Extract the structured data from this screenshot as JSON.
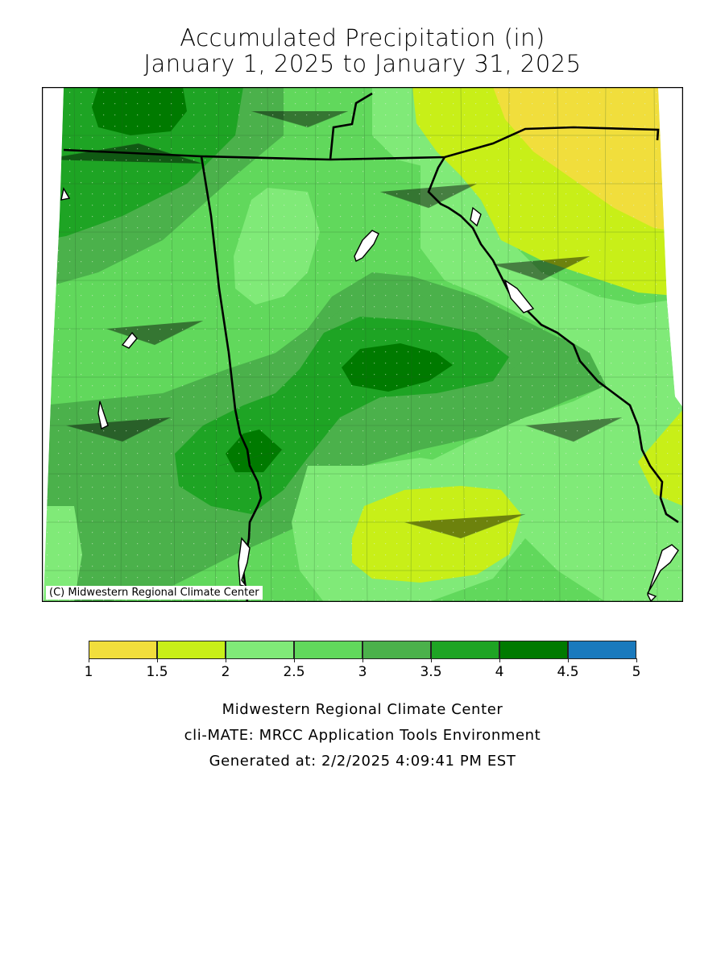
{
  "title_line1": "Accumulated Precipitation (in)",
  "title_line2": "January 1, 2025 to January 31, 2025",
  "credit": "(C) Midwestern Regional Climate Center",
  "legend": {
    "ticks": [
      "1",
      "1.5",
      "2",
      "2.5",
      "3",
      "3.5",
      "4",
      "4.5",
      "5"
    ],
    "bins": [
      {
        "range": "1-1.5",
        "color": "#f1de3c"
      },
      {
        "range": "1.5-2",
        "color": "#c8ef18"
      },
      {
        "range": "2-2.5",
        "color": "#80ea78"
      },
      {
        "range": "2.5-3",
        "color": "#61d85c"
      },
      {
        "range": "3-3.5",
        "color": "#4bb14b"
      },
      {
        "range": "3.5-4",
        "color": "#1ea424"
      },
      {
        "range": "4-4.5",
        "color": "#007a00"
      },
      {
        "range": "4.5-5",
        "color": "#1a7abd"
      }
    ]
  },
  "footer": {
    "line1": "Midwestern Regional Climate Center",
    "line2": "cli-MATE: MRCC Application Tools Environment",
    "line3": "Generated at: 2/2/2025 4:09:41 PM EST"
  }
}
